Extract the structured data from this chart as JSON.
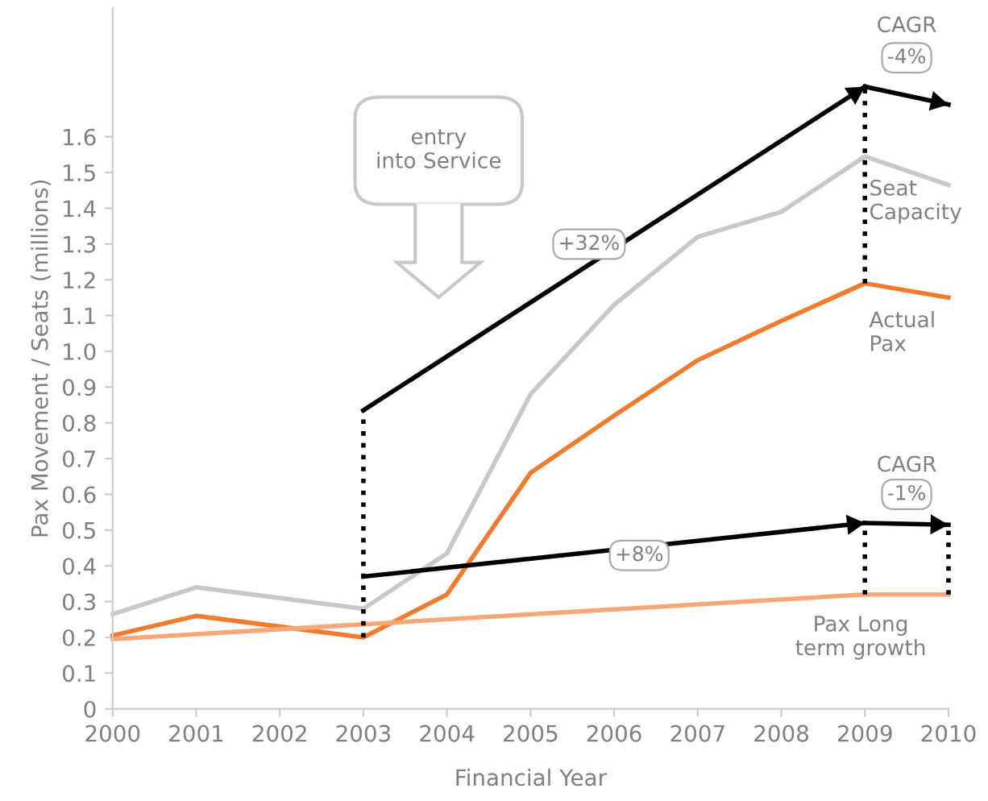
{
  "chart_data": {
    "type": "line",
    "xlabel": "Financial Year",
    "ylabel": "Pax Movement / Seats (millions)",
    "xlim": [
      2000,
      2010
    ],
    "xticks": [
      2000,
      2001,
      2002,
      2003,
      2004,
      2005,
      2006,
      2007,
      2008,
      2009,
      2010
    ],
    "ylim": [
      0,
      1.96
    ],
    "yticks": [
      0,
      {
        "value": 0.1,
        "label": "0.1"
      },
      {
        "value": 0.2,
        "label": "0.2"
      },
      {
        "value": 0.3,
        "label": "0.3"
      },
      {
        "value": 0.4,
        "label": "0.4"
      },
      {
        "value": 0.5,
        "label": "0.5"
      },
      {
        "value": 0.6,
        "label": "0.6"
      },
      {
        "value": 0.7,
        "label": "0.7"
      },
      {
        "value": 0.8,
        "label": "0.8"
      },
      {
        "value": 0.9,
        "label": "0.9"
      },
      {
        "value": 1.0,
        "label": "1.0"
      },
      {
        "value": 1.1,
        "label": "1.1"
      },
      {
        "value": 1.2,
        "label": "1.2"
      },
      {
        "value": 1.3,
        "label": "1.3"
      },
      {
        "value": 1.4,
        "label": "1.4"
      },
      {
        "value": 1.5,
        "label": "1.5"
      },
      {
        "value": 1.6,
        "label": "1.6"
      }
    ],
    "grid": false,
    "legend": false,
    "marker": "none",
    "series": [
      {
        "color": "#c8c8c8",
        "x": [
          2000,
          2001,
          2003,
          2004,
          2005,
          2006,
          2007,
          2008,
          2009,
          2010
        ],
        "values": [
          0.265,
          0.34,
          0.28,
          0.435,
          0.88,
          1.13,
          1.32,
          1.39,
          1.545,
          1.465
        ]
      },
      {
        "color": "#f07c30",
        "x": [
          2000,
          2001,
          2002,
          2003,
          2004,
          2005,
          2006,
          2007,
          2008,
          2009,
          2010
        ],
        "values": [
          0.205,
          0.26,
          0.23,
          0.2,
          0.32,
          0.66,
          0.82,
          0.975,
          1.085,
          1.19,
          1.15
        ]
      },
      {
        "color": "#f6a878",
        "x": [
          2000,
          2009,
          2010
        ],
        "values": [
          0.195,
          0.32,
          0.32
        ]
      },
      {
        "color": "#000000",
        "x": [
          2003,
          2009
        ],
        "values": [
          0.835,
          1.74
        ]
      },
      {
        "color": "#000000",
        "x": [
          2009,
          2010
        ],
        "values": [
          1.74,
          1.69
        ]
      },
      {
        "color": "#000000",
        "x": [
          2003,
          2009
        ],
        "values": [
          0.37,
          0.52
        ]
      },
      {
        "color": "#000000",
        "x": [
          2009,
          2010
        ],
        "values": [
          0.52,
          0.515
        ]
      },
      {
        "color": "#000000",
        "line_style": "dotted",
        "x": [
          2003,
          2003
        ],
        "values": [
          0.2,
          0.835
        ]
      },
      {
        "color": "#000000",
        "line_style": "dotted",
        "x": [
          2009,
          2009
        ],
        "values": [
          1.19,
          1.74
        ]
      },
      {
        "color": "#000000",
        "line_style": "dotted",
        "x": [
          2009,
          2009
        ],
        "values": [
          0.32,
          0.52
        ]
      },
      {
        "color": "#000000",
        "line_style": "dotted",
        "x": [
          2010,
          2010
        ],
        "values": [
          0.32,
          0.515
        ]
      }
    ],
    "annotations": [
      "Seat\nCapacity",
      "Actual\nPax",
      "Pax Long\nterm growth",
      "+32%",
      "+8%",
      "CAGR",
      "-4%",
      "CAGR",
      "-1%",
      "entry\ninto Service"
    ]
  }
}
